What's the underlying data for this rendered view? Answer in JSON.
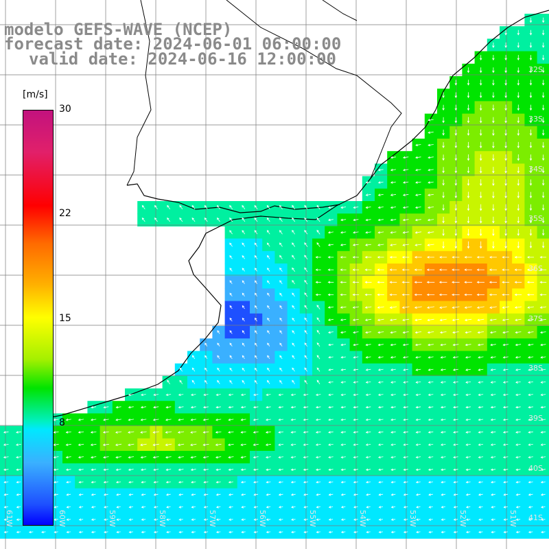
{
  "title": {
    "model": "modelo GEFS-WAVE (NCEP)",
    "forecast": "forecast date: 2024-06-01 06:00:00",
    "valid": "valid date: 2024-06-16 12:00:00"
  },
  "colorbar": {
    "unit": "[m/s]",
    "ticks": [
      "30",
      "22",
      "15",
      "8"
    ],
    "colors": [
      "#c2127e",
      "#ff0000",
      "#ffff00",
      "#00e400",
      "#00e8ff",
      "#0000ff"
    ]
  },
  "grid": {
    "lat_labels": [
      "32S",
      "33S",
      "34S",
      "35S",
      "36S",
      "37S",
      "38S",
      "39S",
      "40S",
      "41S"
    ],
    "lon_labels": [
      "61W",
      "60W",
      "59W",
      "58W",
      "57W",
      "56W",
      "55W",
      "54W",
      "53W",
      "52W",
      "51W"
    ]
  }
}
